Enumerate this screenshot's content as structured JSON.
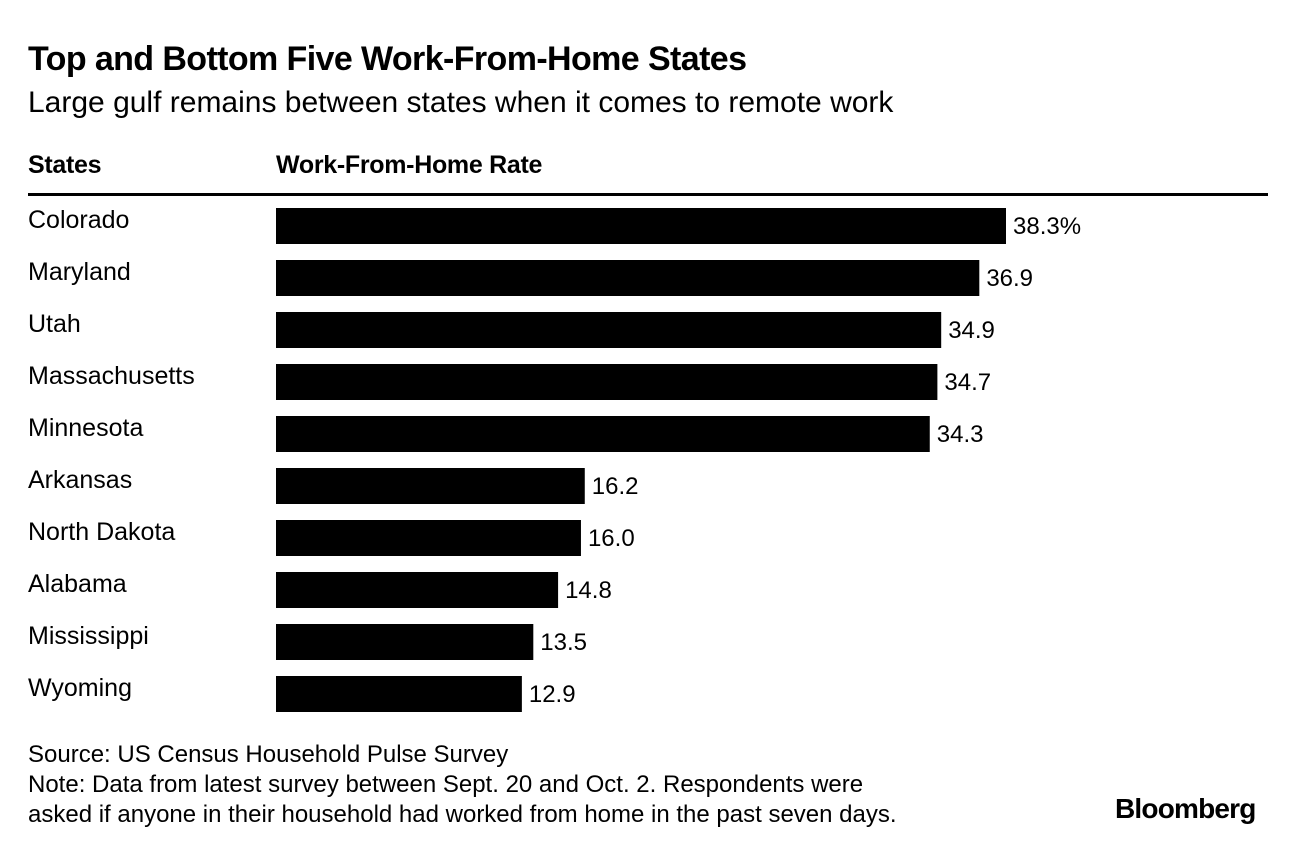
{
  "chart_data": {
    "type": "bar",
    "orientation": "horizontal",
    "title": "Top and Bottom Five Work-From-Home States",
    "subtitle": "Large gulf remains between states when it comes to remote work",
    "column_headers": {
      "categories": "States",
      "values": "Work-From-Home Rate"
    },
    "categories": [
      "Colorado",
      "Maryland",
      "Utah",
      "Massachusetts",
      "Minnesota",
      "Arkansas",
      "North Dakota",
      "Alabama",
      "Mississippi",
      "Wyoming"
    ],
    "values": [
      38.3,
      36.9,
      34.9,
      34.7,
      34.3,
      16.2,
      16.0,
      14.8,
      13.5,
      12.9
    ],
    "value_labels": [
      "38.3%",
      "36.9",
      "34.9",
      "34.7",
      "34.3",
      "16.2",
      "16.0",
      "14.8",
      "13.5",
      "12.9"
    ],
    "bar_color": "#000000",
    "xlim": [
      0,
      38.3
    ]
  },
  "footer": {
    "source": "Source: US Census Household Pulse Survey",
    "note_line1": "Note: Data from latest survey between Sept. 20 and Oct. 2. Respondents were",
    "note_line2": "asked if anyone in their household had worked from home in the past seven days.",
    "brand": "Bloomberg"
  }
}
